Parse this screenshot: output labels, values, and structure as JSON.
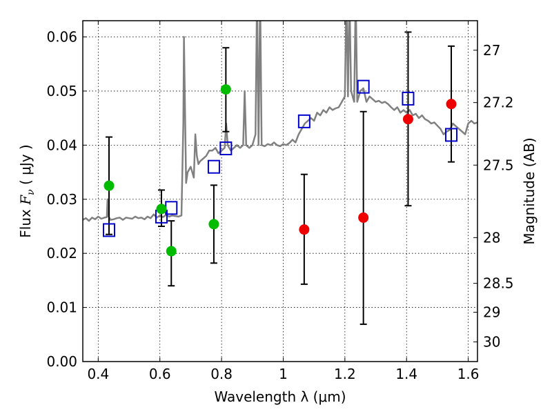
{
  "chart_data": {
    "type": "scatter",
    "title": "",
    "xlabel": "Wavelength  λ (μm)",
    "ylabel_left_parts": [
      "Flux  ",
      "F",
      "ν",
      "  (  μJy  )"
    ],
    "ylabel_right": "Magnitude (AB)",
    "xlim": [
      0.35,
      1.63
    ],
    "ylim": [
      0.0,
      0.063
    ],
    "grid": true,
    "x_ticks": [
      0.4,
      0.6,
      0.8,
      1.0,
      1.2,
      1.4,
      1.6
    ],
    "x_tick_labels": [
      "0.4",
      "0.6",
      "0.8",
      "1",
      "1.2",
      "1.4",
      "1.6"
    ],
    "y_ticks": [
      0.0,
      0.01,
      0.02,
      0.03,
      0.04,
      0.05,
      0.06
    ],
    "y_tick_labels": [
      "0.00",
      "0.01",
      "0.02",
      "0.03",
      "0.04",
      "0.05",
      "0.06"
    ],
    "right_ticks": [
      {
        "mag": 27,
        "label": "27"
      },
      {
        "mag": 27.2,
        "label": "27.2"
      },
      {
        "mag": 27.5,
        "label": "27.5"
      },
      {
        "mag": 28,
        "label": "28"
      },
      {
        "mag": 28.5,
        "label": "28.5"
      },
      {
        "mag": 29,
        "label": "29"
      },
      {
        "mag": 30,
        "label": "30"
      }
    ],
    "colors": {
      "green": "#00bb00",
      "red": "#ee0000",
      "blue": "#0000cc",
      "spectrum": "#808080",
      "error": "#000000"
    },
    "series": [
      {
        "name": "observed-green",
        "marker": "circle",
        "color": "#00bb00",
        "points": [
          {
            "x": 0.435,
            "y": 0.0325,
            "ylo": 0.0235,
            "yhi": 0.0415
          },
          {
            "x": 0.605,
            "y": 0.0282,
            "ylo": 0.025,
            "yhi": 0.0317
          },
          {
            "x": 0.637,
            "y": 0.0204,
            "ylo": 0.014,
            "yhi": 0.026
          },
          {
            "x": 0.775,
            "y": 0.0254,
            "ylo": 0.0182,
            "yhi": 0.0326
          },
          {
            "x": 0.814,
            "y": 0.0503,
            "ylo": 0.0425,
            "yhi": 0.058
          }
        ]
      },
      {
        "name": "observed-red",
        "marker": "circle",
        "color": "#ee0000",
        "points": [
          {
            "x": 1.068,
            "y": 0.0244,
            "ylo": 0.0143,
            "yhi": 0.0346
          },
          {
            "x": 1.26,
            "y": 0.0266,
            "ylo": 0.0069,
            "yhi": 0.0462
          },
          {
            "x": 1.405,
            "y": 0.0448,
            "ylo": 0.0288,
            "yhi": 0.0609
          },
          {
            "x": 1.545,
            "y": 0.0476,
            "ylo": 0.0369,
            "yhi": 0.0583
          }
        ]
      },
      {
        "name": "model-blue",
        "marker": "square",
        "color": "#0000cc",
        "points": [
          {
            "x": 0.435,
            "y": 0.0243
          },
          {
            "x": 0.605,
            "y": 0.0268
          },
          {
            "x": 0.637,
            "y": 0.0284
          },
          {
            "x": 0.775,
            "y": 0.036
          },
          {
            "x": 0.814,
            "y": 0.0394
          },
          {
            "x": 1.068,
            "y": 0.0444
          },
          {
            "x": 1.26,
            "y": 0.0508
          },
          {
            "x": 1.405,
            "y": 0.0486
          },
          {
            "x": 1.545,
            "y": 0.0419
          }
        ]
      }
    ],
    "spectrum": {
      "color": "#808080",
      "x": [
        0.35,
        0.36,
        0.37,
        0.38,
        0.39,
        0.4,
        0.41,
        0.42,
        0.428,
        0.43,
        0.432,
        0.44,
        0.45,
        0.46,
        0.47,
        0.48,
        0.49,
        0.5,
        0.51,
        0.52,
        0.53,
        0.54,
        0.55,
        0.56,
        0.57,
        0.58,
        0.59,
        0.6,
        0.61,
        0.62,
        0.63,
        0.64,
        0.65,
        0.66,
        0.67,
        0.676,
        0.678,
        0.685,
        0.69,
        0.7,
        0.71,
        0.715,
        0.72,
        0.725,
        0.73,
        0.74,
        0.75,
        0.76,
        0.77,
        0.78,
        0.79,
        0.8,
        0.81,
        0.815,
        0.82,
        0.83,
        0.84,
        0.85,
        0.86,
        0.87,
        0.875,
        0.88,
        0.89,
        0.9,
        0.91,
        0.915,
        0.92,
        0.925,
        0.93,
        0.94,
        0.95,
        0.96,
        0.97,
        0.98,
        0.99,
        1.0,
        1.01,
        1.02,
        1.03,
        1.04,
        1.05,
        1.06,
        1.07,
        1.08,
        1.09,
        1.1,
        1.11,
        1.12,
        1.13,
        1.14,
        1.15,
        1.16,
        1.17,
        1.18,
        1.19,
        1.2,
        1.205,
        1.21,
        1.215,
        1.22,
        1.23,
        1.235,
        1.24,
        1.25,
        1.26,
        1.27,
        1.28,
        1.29,
        1.3,
        1.31,
        1.32,
        1.33,
        1.34,
        1.35,
        1.36,
        1.37,
        1.38,
        1.39,
        1.4,
        1.41,
        1.42,
        1.43,
        1.44,
        1.45,
        1.46,
        1.47,
        1.48,
        1.49,
        1.5,
        1.51,
        1.52,
        1.53,
        1.54,
        1.55,
        1.56,
        1.57,
        1.58,
        1.59,
        1.6,
        1.61,
        1.62,
        1.63
      ],
      "y": [
        0.0262,
        0.0265,
        0.026,
        0.0266,
        0.0263,
        0.0268,
        0.0264,
        0.0266,
        0.0267,
        0.03,
        0.027,
        0.0262,
        0.0263,
        0.0265,
        0.0266,
        0.0262,
        0.0266,
        0.0265,
        0.0264,
        0.0268,
        0.0265,
        0.0266,
        0.0263,
        0.0268,
        0.0265,
        0.0272,
        0.0266,
        0.027,
        0.0267,
        0.0271,
        0.0268,
        0.027,
        0.0269,
        0.0268,
        0.027,
        0.044,
        0.06,
        0.033,
        0.035,
        0.036,
        0.034,
        0.042,
        0.038,
        0.0365,
        0.037,
        0.0375,
        0.038,
        0.039,
        0.039,
        0.0395,
        0.0385,
        0.039,
        0.0395,
        0.044,
        0.04,
        0.039,
        0.0395,
        0.04,
        0.0395,
        0.04,
        0.05,
        0.04,
        0.0395,
        0.04,
        0.042,
        0.068,
        0.04,
        0.068,
        0.04,
        0.0398,
        0.0402,
        0.04,
        0.0405,
        0.04,
        0.0398,
        0.0402,
        0.04,
        0.0404,
        0.041,
        0.0405,
        0.042,
        0.043,
        0.044,
        0.0445,
        0.045,
        0.0445,
        0.046,
        0.0455,
        0.0465,
        0.046,
        0.047,
        0.0465,
        0.0468,
        0.047,
        0.048,
        0.049,
        0.068,
        0.049,
        0.068,
        0.05,
        0.048,
        0.068,
        0.048,
        0.05,
        0.0505,
        0.048,
        0.049,
        0.0485,
        0.048,
        0.0482,
        0.0478,
        0.048,
        0.0476,
        0.047,
        0.0465,
        0.047,
        0.046,
        0.0465,
        0.046,
        0.0465,
        0.0455,
        0.0458,
        0.045,
        0.0455,
        0.0448,
        0.0445,
        0.044,
        0.0442,
        0.0436,
        0.043,
        0.042,
        0.0425,
        0.0428,
        0.044,
        0.0435,
        0.043,
        0.0425,
        0.042,
        0.044,
        0.0445,
        0.044,
        0.0442
      ]
    }
  }
}
